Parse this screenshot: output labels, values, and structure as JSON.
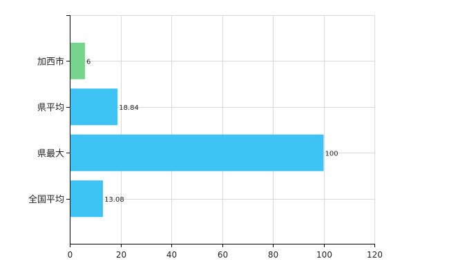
{
  "chart_data": {
    "type": "bar",
    "orientation": "horizontal",
    "categories": [
      "加西市",
      "県平均",
      "県最大",
      "全国平均"
    ],
    "values": [
      6,
      18.84,
      100,
      13.08
    ],
    "data_labels": [
      "6",
      "18.84",
      "100",
      "13.08"
    ],
    "bar_colors": [
      "#77d48f",
      "#3ec3f5",
      "#3ec3f5",
      "#3ec3f5"
    ],
    "x_ticks": [
      0,
      20,
      40,
      60,
      80,
      100,
      120
    ],
    "xlim": [
      0,
      120
    ],
    "grid": true,
    "legend": "none",
    "title": "",
    "xlabel": "",
    "ylabel": ""
  }
}
